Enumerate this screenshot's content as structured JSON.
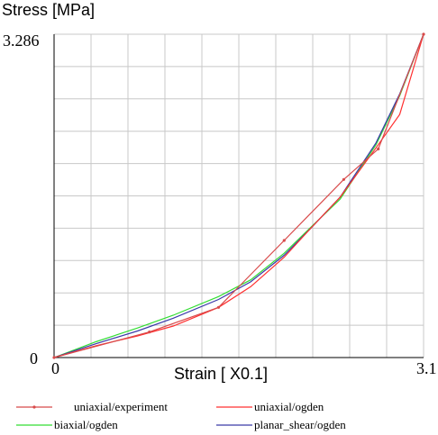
{
  "chart_data": {
    "type": "line",
    "ylabel": "Stress  [MPa]",
    "xlabel": "Strain  [ X0.1]",
    "xlim": [
      0,
      3.1
    ],
    "ylim": [
      0,
      3.286
    ],
    "x_tick_labels": {
      "min": "0",
      "max": "3.1"
    },
    "y_tick_labels": {
      "min": "0",
      "max": "3.286"
    },
    "grid": true,
    "legend_position": "bottom",
    "series": [
      {
        "name": "uniaxial/experiment",
        "color": "#d84a4a",
        "marker": "dot",
        "x": [
          0,
          0.8,
          1.38,
          1.93,
          2.43,
          2.72,
          3.1
        ],
        "y": [
          0,
          0.26,
          0.51,
          1.19,
          1.81,
          2.12,
          3.286
        ]
      },
      {
        "name": "uniaxial/ogden",
        "color": "#ff3030",
        "marker": "none",
        "x": [
          0,
          0.35,
          0.7,
          1.0,
          1.38,
          1.65,
          1.93,
          2.15,
          2.4,
          2.7,
          2.9,
          3.1
        ],
        "y": [
          0,
          0.12,
          0.22,
          0.32,
          0.51,
          0.72,
          1.02,
          1.31,
          1.63,
          2.13,
          2.47,
          3.286
        ]
      },
      {
        "name": "biaxial/ogden",
        "color": "#33dd33",
        "marker": "none",
        "x": [
          0,
          0.35,
          0.7,
          1.0,
          1.38,
          1.65,
          1.93,
          2.15,
          2.4,
          2.7,
          2.9,
          3.1
        ],
        "y": [
          0,
          0.16,
          0.3,
          0.43,
          0.62,
          0.79,
          1.06,
          1.32,
          1.61,
          2.16,
          2.66,
          3.286
        ]
      },
      {
        "name": "planar_shear/ogden",
        "color": "#3a3aa8",
        "marker": "none",
        "x": [
          0,
          0.35,
          0.7,
          1.0,
          1.38,
          1.65,
          1.93,
          2.15,
          2.4,
          2.7,
          2.9,
          3.1
        ],
        "y": [
          0,
          0.14,
          0.27,
          0.4,
          0.59,
          0.77,
          1.04,
          1.31,
          1.63,
          2.18,
          2.68,
          3.286
        ]
      }
    ]
  }
}
